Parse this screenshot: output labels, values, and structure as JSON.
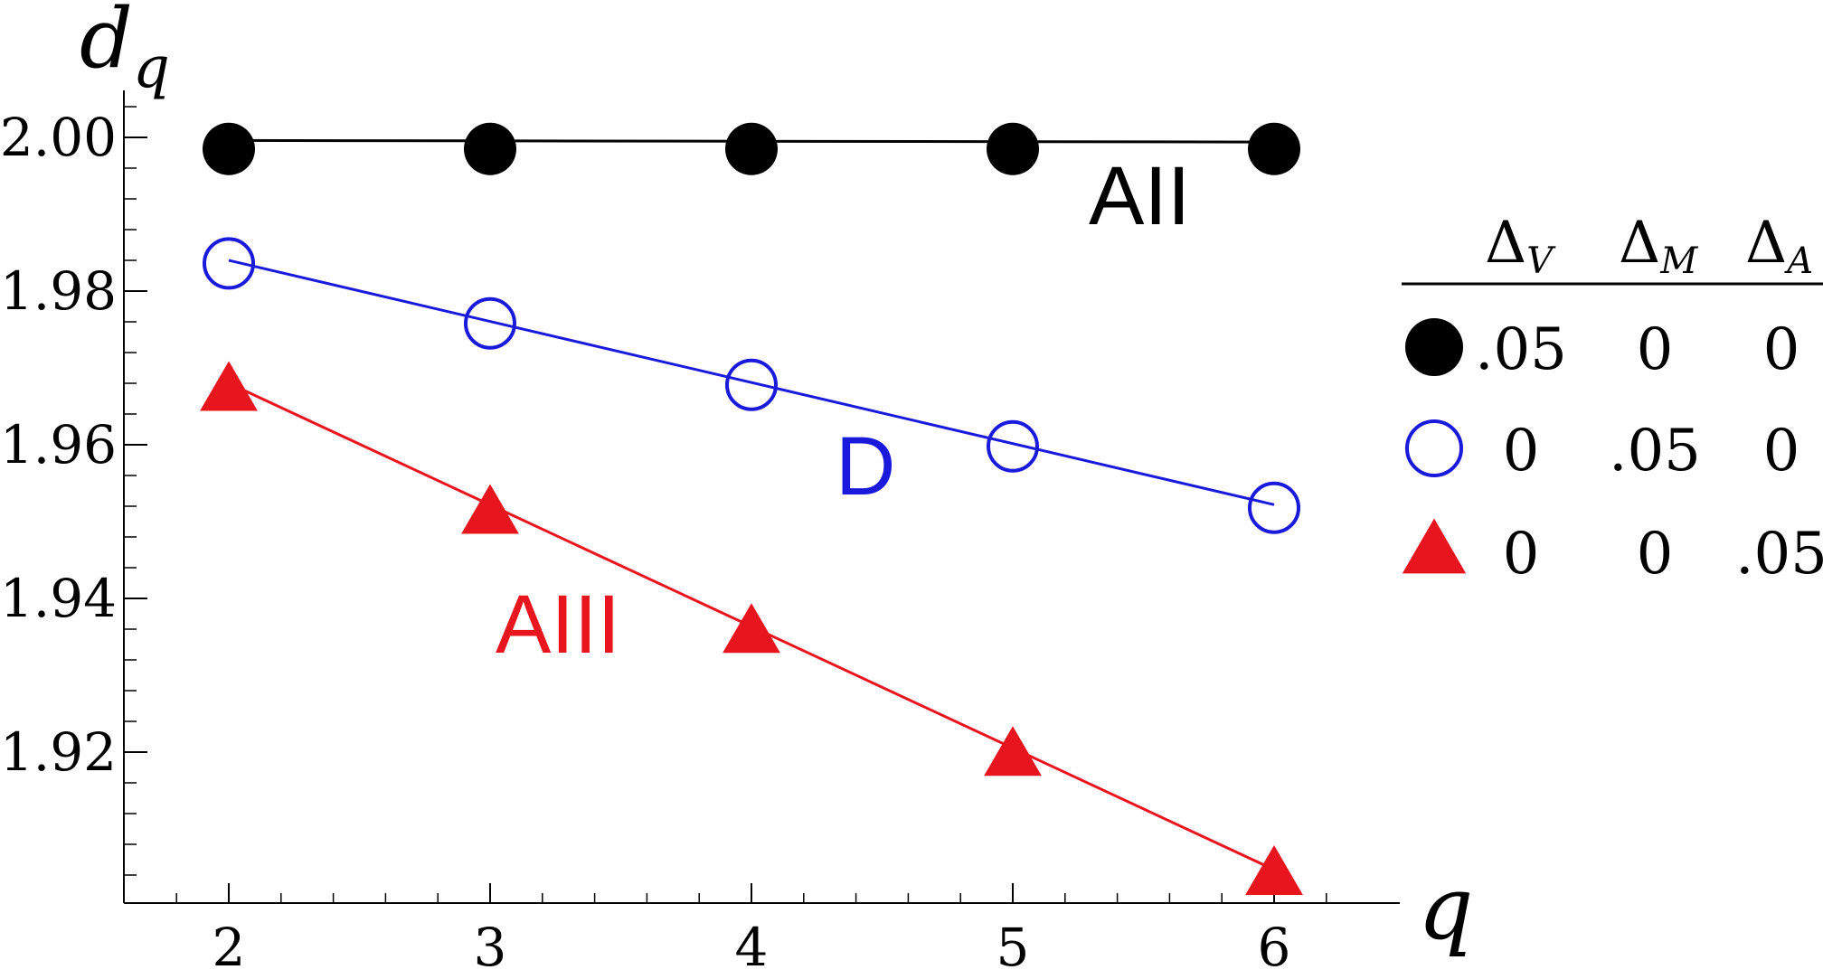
{
  "chart_data": {
    "type": "line",
    "x": [
      2,
      3,
      4,
      5,
      6
    ],
    "xlim": [
      1.6,
      6.5
    ],
    "ylim": [
      1.9,
      2.005
    ],
    "xticks": [
      "2",
      "3",
      "4",
      "5",
      "6"
    ],
    "yticks": [
      "2.00",
      "1.98",
      "1.96",
      "1.94",
      "1.92"
    ],
    "ytick_values": [
      2.0,
      1.98,
      1.96,
      1.94,
      1.92
    ],
    "xlabel": "q",
    "ylabel": "d",
    "ylabel_sub": "q",
    "grid": false,
    "legend_position": "right",
    "series": [
      {
        "name": "AII",
        "color": "#000000",
        "marker": "filled-circle",
        "values": [
          1.9985,
          1.9985,
          1.9985,
          1.9985,
          1.9985
        ],
        "fit": [
          1.9996,
          1.9994
        ]
      },
      {
        "name": "D",
        "color": "#1a1adc",
        "marker": "open-circle",
        "values": [
          1.9836,
          1.9758,
          1.9678,
          1.9598,
          1.9518
        ],
        "fit": [
          1.984,
          1.9522
        ]
      },
      {
        "name": "AIII",
        "color": "#e8141e",
        "marker": "filled-triangle",
        "values": [
          1.967,
          1.951,
          1.9355,
          1.9195,
          1.904
        ],
        "fit": [
          1.968,
          1.9047
        ]
      }
    ],
    "legend": {
      "headers": [
        {
          "symbol": "Δ",
          "sub": "V"
        },
        {
          "symbol": "Δ",
          "sub": "M"
        },
        {
          "symbol": "Δ",
          "sub": "A"
        }
      ],
      "rows": [
        {
          "marker": "filled-circle",
          "color": "#000000",
          "values": [
            ".05",
            "0",
            "0"
          ]
        },
        {
          "marker": "open-circle",
          "color": "#1a1adc",
          "values": [
            "0",
            ".05",
            "0"
          ]
        },
        {
          "marker": "filled-triangle",
          "color": "#e8141e",
          "values": [
            "0",
            "0",
            ".05"
          ]
        }
      ]
    }
  }
}
